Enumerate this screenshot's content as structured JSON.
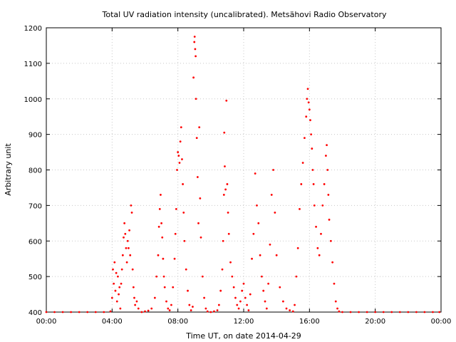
{
  "chart_data": {
    "type": "scatter",
    "title": "Total UV radiation intensity (uncalibrated). Metsähovi Radio Observatory",
    "xlabel": "Time UT, on date 2014-04-29",
    "ylabel": "Arbitrary unit",
    "xlim": [
      0,
      24
    ],
    "ylim": [
      400,
      1200
    ],
    "x_ticks": [
      0,
      4,
      8,
      12,
      16,
      20,
      24
    ],
    "x_tick_labels": [
      "00:00",
      "04:00",
      "08:00",
      "12:00",
      "16:00",
      "20:00",
      "00:00"
    ],
    "y_ticks": [
      400,
      500,
      600,
      700,
      800,
      900,
      1000,
      1100,
      1200
    ],
    "y_tick_labels": [
      "400",
      "500",
      "600",
      "700",
      "800",
      "900",
      "1000",
      "1100",
      "1200"
    ],
    "grid": true,
    "marker_color": "#ff0000",
    "series": [
      {
        "points": [
          [
            0.0,
            400
          ],
          [
            0.5,
            400
          ],
          [
            1.0,
            400
          ],
          [
            1.5,
            400
          ],
          [
            2.0,
            400
          ],
          [
            2.5,
            400
          ],
          [
            3.0,
            400
          ],
          [
            3.5,
            400
          ],
          [
            3.9,
            402
          ],
          [
            4.0,
            440
          ],
          [
            4.05,
            520
          ],
          [
            4.1,
            480
          ],
          [
            4.15,
            540
          ],
          [
            4.2,
            460
          ],
          [
            4.25,
            510
          ],
          [
            4.3,
            430
          ],
          [
            4.35,
            500
          ],
          [
            4.4,
            450
          ],
          [
            4.45,
            470
          ],
          [
            4.5,
            410
          ],
          [
            4.55,
            480
          ],
          [
            4.6,
            520
          ],
          [
            4.65,
            560
          ],
          [
            4.7,
            610
          ],
          [
            4.75,
            650
          ],
          [
            4.8,
            620
          ],
          [
            4.85,
            580
          ],
          [
            4.9,
            540
          ],
          [
            4.95,
            600
          ],
          [
            5.0,
            580
          ],
          [
            5.05,
            630
          ],
          [
            5.1,
            560
          ],
          [
            5.15,
            700
          ],
          [
            5.2,
            680
          ],
          [
            5.25,
            520
          ],
          [
            5.3,
            470
          ],
          [
            5.35,
            440
          ],
          [
            5.4,
            420
          ],
          [
            5.5,
            430
          ],
          [
            5.6,
            410
          ],
          [
            5.8,
            400
          ],
          [
            6.0,
            402
          ],
          [
            6.2,
            404
          ],
          [
            6.4,
            410
          ],
          [
            6.6,
            440
          ],
          [
            6.7,
            500
          ],
          [
            6.8,
            560
          ],
          [
            6.85,
            640
          ],
          [
            6.9,
            690
          ],
          [
            6.95,
            730
          ],
          [
            7.0,
            650
          ],
          [
            7.05,
            610
          ],
          [
            7.1,
            550
          ],
          [
            7.15,
            500
          ],
          [
            7.2,
            470
          ],
          [
            7.3,
            430
          ],
          [
            7.4,
            410
          ],
          [
            7.5,
            405
          ],
          [
            7.6,
            420
          ],
          [
            7.7,
            470
          ],
          [
            7.8,
            550
          ],
          [
            7.85,
            620
          ],
          [
            7.9,
            690
          ],
          [
            7.95,
            800
          ],
          [
            8.0,
            850
          ],
          [
            8.05,
            840
          ],
          [
            8.1,
            820
          ],
          [
            8.15,
            880
          ],
          [
            8.2,
            920
          ],
          [
            8.25,
            830
          ],
          [
            8.3,
            760
          ],
          [
            8.35,
            680
          ],
          [
            8.4,
            600
          ],
          [
            8.5,
            520
          ],
          [
            8.6,
            460
          ],
          [
            8.7,
            420
          ],
          [
            8.8,
            405
          ],
          [
            8.9,
            415
          ],
          [
            8.95,
            1060
          ],
          [
            9.0,
            1160
          ],
          [
            9.02,
            1175
          ],
          [
            9.05,
            1140
          ],
          [
            9.08,
            1120
          ],
          [
            9.1,
            1000
          ],
          [
            9.15,
            890
          ],
          [
            9.2,
            780
          ],
          [
            9.25,
            650
          ],
          [
            9.3,
            920
          ],
          [
            9.35,
            720
          ],
          [
            9.4,
            610
          ],
          [
            9.5,
            500
          ],
          [
            9.6,
            440
          ],
          [
            9.7,
            410
          ],
          [
            9.8,
            402
          ],
          [
            10.0,
            400
          ],
          [
            10.2,
            402
          ],
          [
            10.4,
            405
          ],
          [
            10.5,
            420
          ],
          [
            10.6,
            460
          ],
          [
            10.7,
            520
          ],
          [
            10.75,
            600
          ],
          [
            10.8,
            730
          ],
          [
            10.82,
            905
          ],
          [
            10.85,
            810
          ],
          [
            10.9,
            745
          ],
          [
            10.95,
            995
          ],
          [
            11.0,
            760
          ],
          [
            11.05,
            680
          ],
          [
            11.1,
            620
          ],
          [
            11.2,
            540
          ],
          [
            11.3,
            500
          ],
          [
            11.4,
            470
          ],
          [
            11.5,
            440
          ],
          [
            11.6,
            420
          ],
          [
            11.7,
            410
          ],
          [
            11.8,
            430
          ],
          [
            11.9,
            460
          ],
          [
            12.0,
            480
          ],
          [
            12.1,
            440
          ],
          [
            12.2,
            420
          ],
          [
            12.3,
            405
          ],
          [
            12.4,
            450
          ],
          [
            12.5,
            550
          ],
          [
            12.6,
            620
          ],
          [
            12.7,
            790
          ],
          [
            12.8,
            700
          ],
          [
            12.9,
            650
          ],
          [
            13.0,
            560
          ],
          [
            13.1,
            500
          ],
          [
            13.2,
            460
          ],
          [
            13.3,
            430
          ],
          [
            13.4,
            410
          ],
          [
            13.5,
            480
          ],
          [
            13.6,
            590
          ],
          [
            13.7,
            730
          ],
          [
            13.8,
            800
          ],
          [
            13.9,
            680
          ],
          [
            14.0,
            560
          ],
          [
            14.2,
            470
          ],
          [
            14.4,
            430
          ],
          [
            14.6,
            410
          ],
          [
            14.8,
            405
          ],
          [
            15.0,
            402
          ],
          [
            15.1,
            420
          ],
          [
            15.2,
            500
          ],
          [
            15.3,
            580
          ],
          [
            15.4,
            690
          ],
          [
            15.5,
            760
          ],
          [
            15.6,
            820
          ],
          [
            15.7,
            890
          ],
          [
            15.8,
            950
          ],
          [
            15.85,
            1000
          ],
          [
            15.9,
            1028
          ],
          [
            15.95,
            990
          ],
          [
            16.0,
            970
          ],
          [
            16.05,
            940
          ],
          [
            16.1,
            900
          ],
          [
            16.15,
            860
          ],
          [
            16.2,
            800
          ],
          [
            16.25,
            760
          ],
          [
            16.3,
            700
          ],
          [
            16.4,
            640
          ],
          [
            16.5,
            580
          ],
          [
            16.6,
            560
          ],
          [
            16.7,
            620
          ],
          [
            16.8,
            700
          ],
          [
            16.9,
            760
          ],
          [
            17.0,
            840
          ],
          [
            17.05,
            870
          ],
          [
            17.1,
            800
          ],
          [
            17.15,
            730
          ],
          [
            17.2,
            660
          ],
          [
            17.3,
            600
          ],
          [
            17.4,
            540
          ],
          [
            17.5,
            480
          ],
          [
            17.6,
            430
          ],
          [
            17.7,
            410
          ],
          [
            17.8,
            402
          ],
          [
            18.0,
            400
          ],
          [
            18.5,
            400
          ],
          [
            19.0,
            400
          ],
          [
            19.5,
            400
          ],
          [
            20.0,
            400
          ],
          [
            20.5,
            400
          ],
          [
            21.0,
            400
          ],
          [
            21.5,
            400
          ],
          [
            22.0,
            400
          ],
          [
            22.5,
            400
          ],
          [
            23.0,
            400
          ],
          [
            23.5,
            400
          ],
          [
            23.9,
            400
          ]
        ]
      }
    ]
  }
}
